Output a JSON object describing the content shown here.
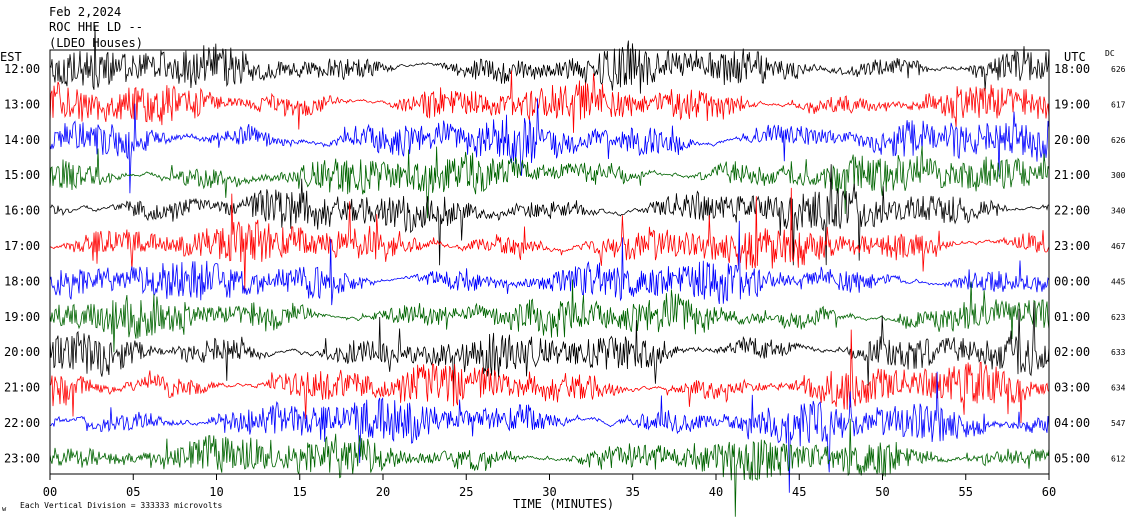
{
  "header": {
    "date": "Feb 2,2024",
    "station": "ROC HHE LD --",
    "clipped_line": "(LDEO Houses)"
  },
  "chart_data": {
    "type": "line",
    "left_axis_title": "EST",
    "right_axis_title": "UTC",
    "dc_title": "DC",
    "xlabel": "TIME (MINUTES)",
    "xlim": [
      0,
      60
    ],
    "x_ticks": [
      "00",
      "05",
      "10",
      "15",
      "20",
      "25",
      "30",
      "35",
      "40",
      "45",
      "50",
      "55",
      "60"
    ],
    "trace_colors": [
      "#000000",
      "#ff0000",
      "#0000ff",
      "#006400"
    ],
    "rows": [
      {
        "est": "12:00",
        "utc": "18:00",
        "dc": "626"
      },
      {
        "est": "13:00",
        "utc": "19:00",
        "dc": "617"
      },
      {
        "est": "14:00",
        "utc": "20:00",
        "dc": "626"
      },
      {
        "est": "15:00",
        "utc": "21:00",
        "dc": "300"
      },
      {
        "est": "16:00",
        "utc": "22:00",
        "dc": "340"
      },
      {
        "est": "17:00",
        "utc": "23:00",
        "dc": "467"
      },
      {
        "est": "18:00",
        "utc": "00:00",
        "dc": "445"
      },
      {
        "est": "19:00",
        "utc": "01:00",
        "dc": "623"
      },
      {
        "est": "20:00",
        "utc": "02:00",
        "dc": "633"
      },
      {
        "est": "21:00",
        "utc": "03:00",
        "dc": "634"
      },
      {
        "est": "22:00",
        "utc": "04:00",
        "dc": "547"
      },
      {
        "est": "23:00",
        "utc": "05:00",
        "dc": "612"
      }
    ]
  },
  "footer": {
    "mark": "w",
    "division_note": "Each Vertical Division =  333333 microvolts"
  }
}
